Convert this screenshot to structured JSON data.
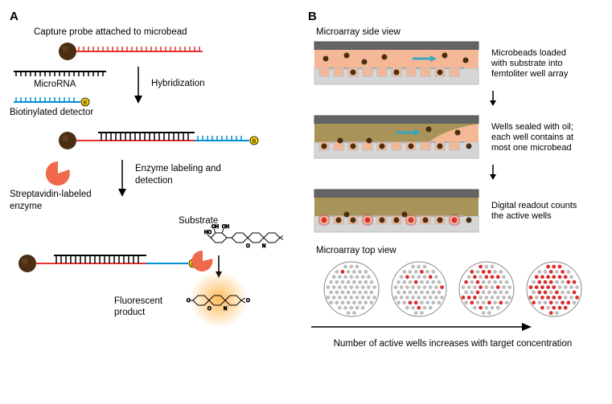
{
  "panelA": {
    "letter": "A",
    "captureProbeLabel": "Capture probe attached to microbead",
    "microRNALabel": "MicroRNA",
    "biotinDetectorLabel": "Biotinylated detector",
    "hybridizationLabel": "Hybridization",
    "enzymeLabel": "Streptavidin-labeled enzyme",
    "enzymeStepLabel": "Enzyme labeling and detection",
    "substrateLabel": "Substrate",
    "fluorescentLabel": "Fluorescent product",
    "colors": {
      "bead": "#4a2e12",
      "beadDark": "#2e1a08",
      "captureProbe": "#e8312f",
      "microRNA": "#000000",
      "detector": "#0090d4",
      "biotin": "#ffd400",
      "enzyme": "#f0694a",
      "enzymeDark": "#e04a2a",
      "glowInner": "#ffb347",
      "glowOuter": "#ffe0b3",
      "molecule": "#000000"
    }
  },
  "panelB": {
    "letter": "B",
    "sideViewLabel": "Microarray side view",
    "step1": "Microbeads loaded with substrate into femtoliter well array",
    "step2": "Wells sealed with oil; each well contains at most one microbead",
    "step3": "Digital readout counts the active wells",
    "topViewLabel": "Microarray top view",
    "concentrationLabel": "Number of active wells increases with target concentration",
    "colors": {
      "cover": "#646464",
      "coverDark": "#565656",
      "substrateFluid": "#f5b896",
      "substrateDark": "#db9a76",
      "oil": "#a89458",
      "oilDark": "#8f7c44",
      "wellBase": "#d6d6d6",
      "wellWall": "#bebebe",
      "wellTop": "#ababab",
      "bead": "#4a2e12",
      "active": "#d83030",
      "inactive": "#bdbdbd",
      "flowArrow": "#35a8c0"
    },
    "topView": {
      "activeCounts": [
        1,
        8,
        20,
        40
      ],
      "totalDots": 72
    }
  }
}
